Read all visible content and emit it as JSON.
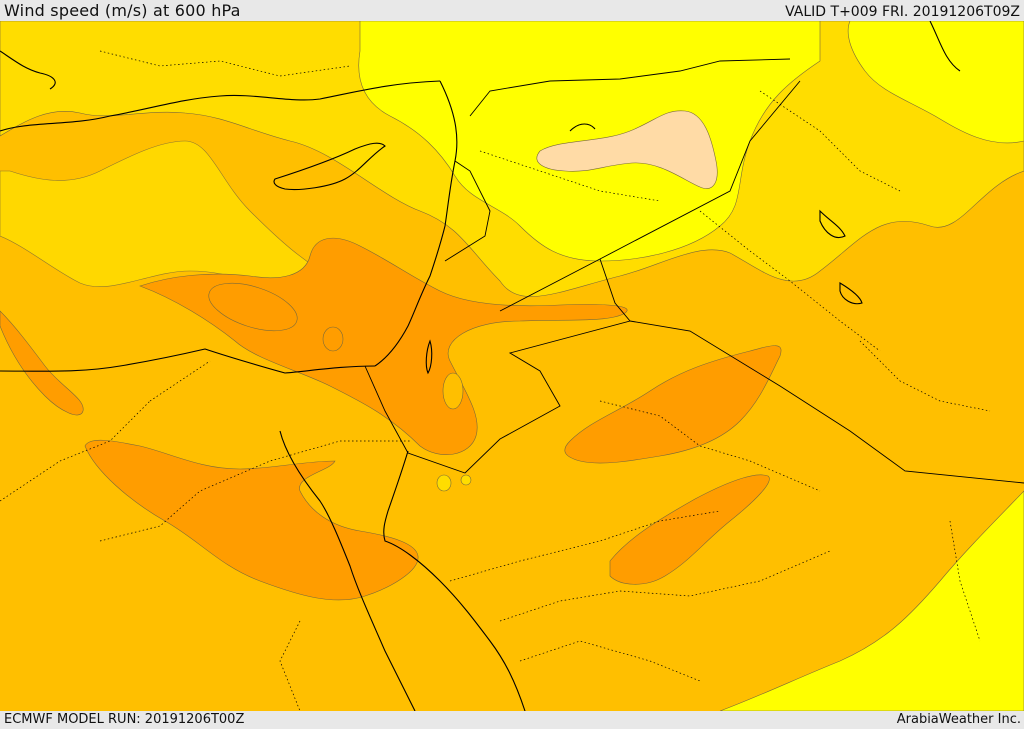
{
  "header": {
    "title": "Wind speed (m/s) at 600 hPa",
    "valid_time": "VALID T+009 FRI. 20191206T09Z"
  },
  "footer": {
    "model_run": "ECMWF MODEL RUN: 20191206T00Z",
    "credit": "ArabiaWeather Inc."
  },
  "colors": {
    "wind_band_lightest": "#ffdba6",
    "wind_band_1": "#ffff00",
    "wind_band_2": "#ffdd00",
    "wind_band_3": "#ffbf00",
    "wind_band_4": "#ff9d00",
    "contour_line": "#7a6a3a",
    "coastline": "#000000",
    "border": "#000000"
  }
}
